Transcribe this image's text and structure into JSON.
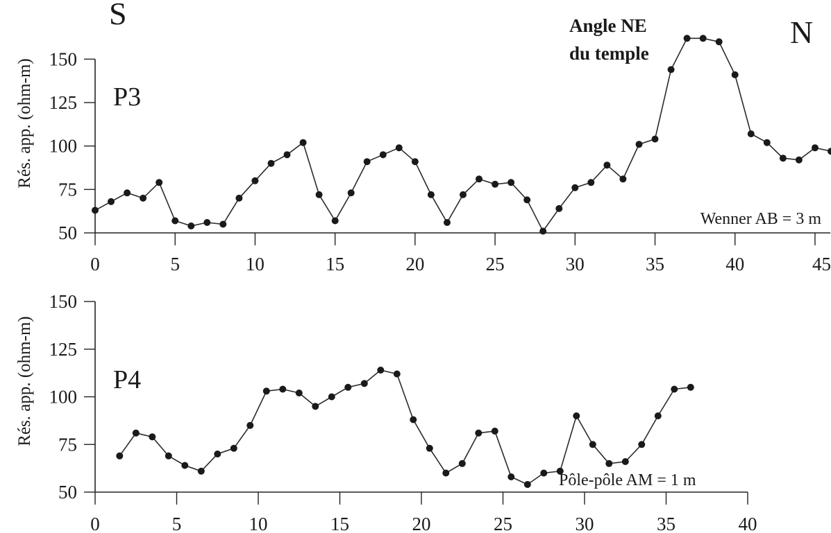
{
  "chart_data": [
    {
      "type": "line",
      "profile_label": "P3",
      "direction_left": "S",
      "direction_right": "N",
      "ylabel": "Rés. app. (ohm-m)",
      "xlabel": "",
      "config": "Wenner AB = 3 m",
      "annotation": [
        "Angle NE",
        "du temple"
      ],
      "xlim": [
        0,
        46
      ],
      "ylim": [
        50,
        160
      ],
      "xticks": [
        0,
        5,
        10,
        15,
        20,
        25,
        30,
        35,
        40,
        45
      ],
      "yticks": [
        50,
        75,
        100,
        125,
        150
      ],
      "x": [
        0,
        1,
        2,
        3,
        4,
        5,
        6,
        7,
        8,
        9,
        10,
        11,
        12,
        13,
        14,
        15,
        16,
        17,
        18,
        19,
        20,
        21,
        22,
        23,
        24,
        25,
        26,
        27,
        28,
        29,
        30,
        31,
        32,
        33,
        34,
        35,
        36,
        37,
        38,
        39,
        40,
        41,
        42,
        43,
        44,
        45,
        46
      ],
      "values": [
        63,
        68,
        73,
        70,
        79,
        57,
        54,
        56,
        55,
        70,
        80,
        90,
        95,
        102,
        72,
        57,
        73,
        91,
        95,
        99,
        91,
        72,
        56,
        72,
        81,
        78,
        79,
        69,
        51,
        64,
        76,
        79,
        89,
        81,
        101,
        104,
        144,
        162,
        162,
        160,
        141,
        107,
        102,
        93,
        92,
        99,
        97
      ]
    },
    {
      "type": "line",
      "profile_label": "P4",
      "ylabel": "Rés. app. (ohm-m)",
      "xlabel": "",
      "config": "Pôle-pôle AM = 1 m",
      "xlim": [
        0,
        40
      ],
      "ylim": [
        50,
        150
      ],
      "xticks": [
        0,
        5,
        10,
        15,
        20,
        25,
        30,
        35,
        40
      ],
      "yticks": [
        50,
        75,
        100,
        125,
        150
      ],
      "x": [
        1.5,
        2.5,
        3.5,
        4.5,
        5.5,
        6.5,
        7.5,
        8.5,
        9.5,
        10.5,
        11.5,
        12.5,
        13.5,
        14.5,
        15.5,
        16.5,
        17.5,
        18.5,
        19.5,
        20.5,
        21.5,
        22.5,
        23.5,
        24.5,
        25.5,
        26.5,
        27.5,
        28.5,
        29.5,
        30.5,
        31.5,
        32.5,
        33.5,
        34.5,
        35.5,
        36.5
      ],
      "values": [
        69,
        81,
        79,
        69,
        64,
        61,
        70,
        73,
        85,
        103,
        104,
        102,
        95,
        100,
        105,
        107,
        114,
        112,
        88,
        73,
        60,
        65,
        81,
        82,
        58,
        54,
        60,
        61,
        90,
        75,
        65,
        66,
        75,
        90,
        104,
        105
      ]
    }
  ]
}
